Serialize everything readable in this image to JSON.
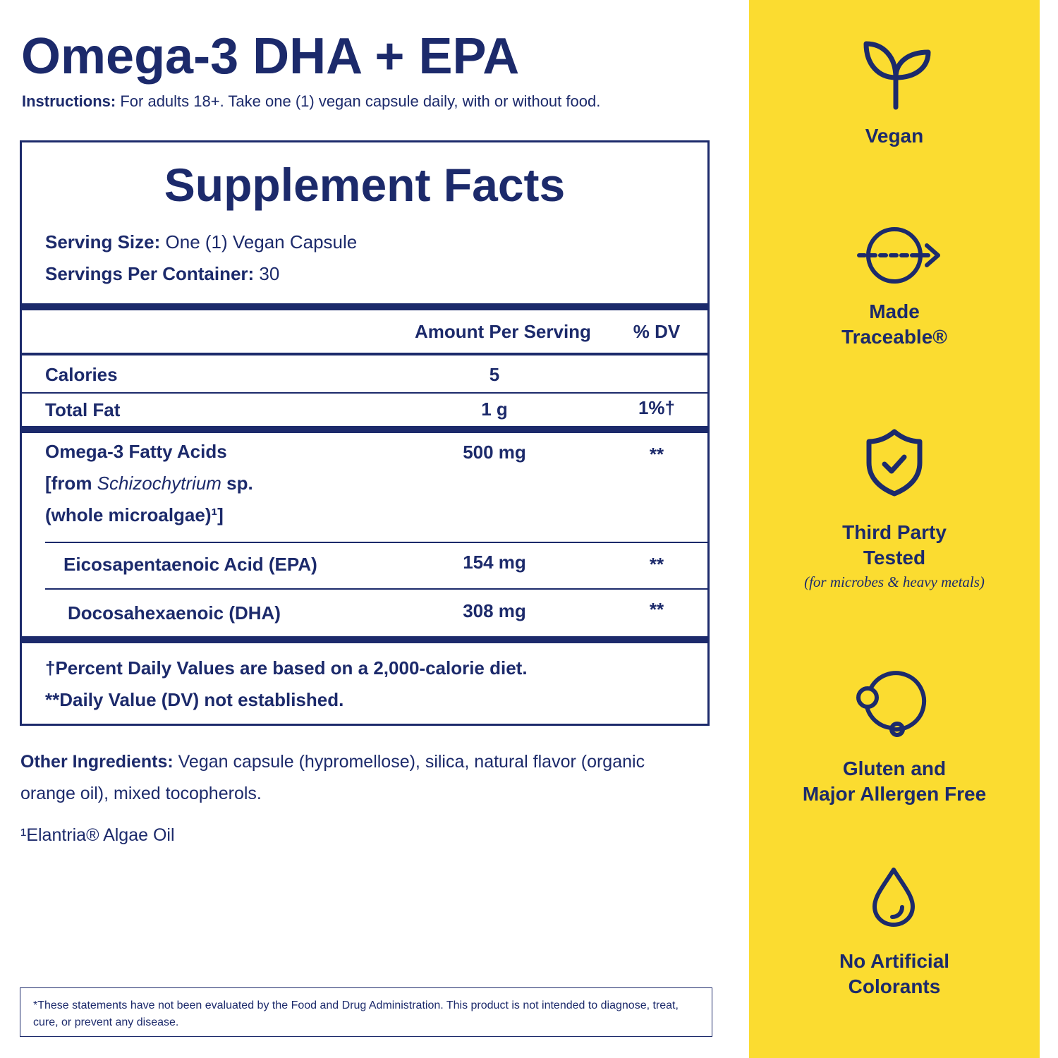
{
  "header": {
    "title": "Omega-3 DHA + EPA",
    "instructions_label": "Instructions:",
    "instructions_text": " For adults 18+. Take one (1) vegan capsule daily, with or without food."
  },
  "facts": {
    "title": "Supplement Facts",
    "serving_size_label": "Serving Size:",
    "serving_size_value": " One (1) Vegan Capsule",
    "servings_label": "Servings Per Container:",
    "servings_value": " 30",
    "col_amount": "Amount Per Serving",
    "col_dv": "% DV",
    "rows": [
      {
        "name": "Calories",
        "amount": "5",
        "dv": ""
      },
      {
        "name": "Total Fat",
        "amount": "1 g",
        "dv": "1%†"
      },
      {
        "name_line1": "Omega-3 Fatty Acids",
        "name_line2_pre": "[from ",
        "name_line2_italic": "Schizochytrium",
        "name_line2_post": " sp.",
        "name_line3": "(whole microalgae)¹]",
        "amount": "500 mg",
        "dv": "**"
      },
      {
        "name": "Eicosapentaenoic Acid (EPA)",
        "amount": "154 mg",
        "dv": "**"
      },
      {
        "name": "Docosahexaenoic (DHA)",
        "amount": "308 mg",
        "dv": "**"
      }
    ],
    "footnote1": "†Percent Daily Values are based on a 2,000-calorie diet.",
    "footnote2": "**Daily Value (DV) not established."
  },
  "other": {
    "label": "Other Ingredients:",
    "text": " Vegan capsule (hypromellose), silica, natural flavor (organic orange oil), mixed tocopherols.",
    "elantria": "¹Elantria® Algae Oil"
  },
  "disclaimer": "*These statements have not been evaluated by the Food and Drug Administration. This product is not intended to diagnose, treat, cure, or prevent any disease.",
  "badges": [
    {
      "icon": "sprout-icon",
      "line1": "Vegan"
    },
    {
      "icon": "trace-arrow-icon",
      "line1": "Made",
      "line2": "Traceable®"
    },
    {
      "icon": "shield-check-icon",
      "line1": "Third Party",
      "line2": "Tested",
      "sub": "(for microbes & heavy metals)"
    },
    {
      "icon": "molecule-icon",
      "line1": "Gluten and",
      "line2": "Major Allergen Free"
    },
    {
      "icon": "droplet-icon",
      "line1": "No Artificial",
      "line2": "Colorants"
    }
  ],
  "colors": {
    "navy": "#1c2a6b",
    "yellow": "#fbdc30"
  }
}
